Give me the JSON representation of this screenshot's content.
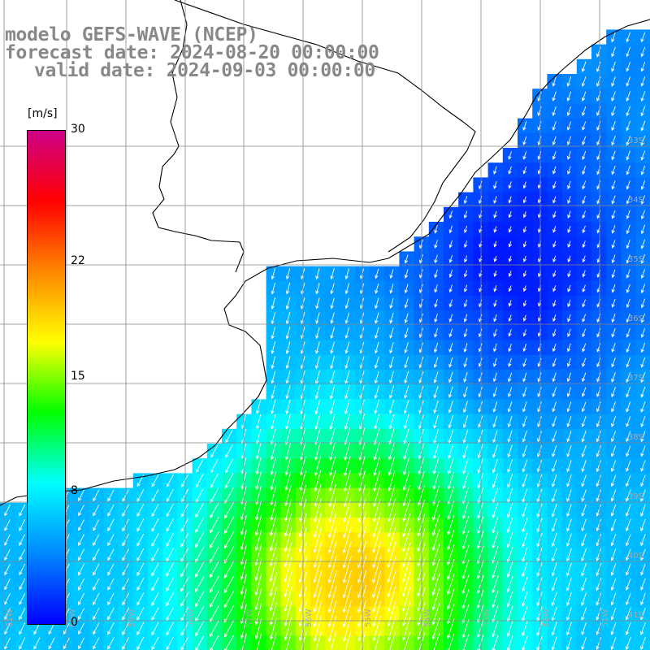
{
  "header": {
    "line1": "modelo GEFS-WAVE (NCEP)",
    "line2": "forecast date: 2024-08-20 00:00:00",
    "line3": "valid date: 2024-09-03 00:00:00"
  },
  "colorbar": {
    "unit": "[m/s]",
    "ticks": [
      {
        "label": "30",
        "value": 30
      },
      {
        "label": "22",
        "value": 22
      },
      {
        "label": "15",
        "value": 15
      },
      {
        "label": "8",
        "value": 8
      },
      {
        "label": "0",
        "value": 0
      }
    ],
    "colors": [
      "#0000ff",
      "#0088ff",
      "#00ffff",
      "#00ff00",
      "#ffff00",
      "#ff8800",
      "#ff0000",
      "#cc0088"
    ]
  },
  "map": {
    "lat_labels": [
      "33S",
      "34S",
      "35S",
      "36S",
      "37S",
      "38S",
      "39S",
      "40S",
      "41S"
    ],
    "lon_labels": [
      "61W",
      "60W",
      "59W",
      "58W",
      "57W",
      "56W",
      "55W",
      "54W",
      "53W",
      "52W",
      "51W"
    ],
    "field": "10 m wind speed and direction",
    "colors": {
      "land": "#ffffff",
      "gridline": "#888888",
      "coastline": "#000000",
      "arrows": "#ffffff",
      "graticule_labels": "#999999"
    }
  }
}
